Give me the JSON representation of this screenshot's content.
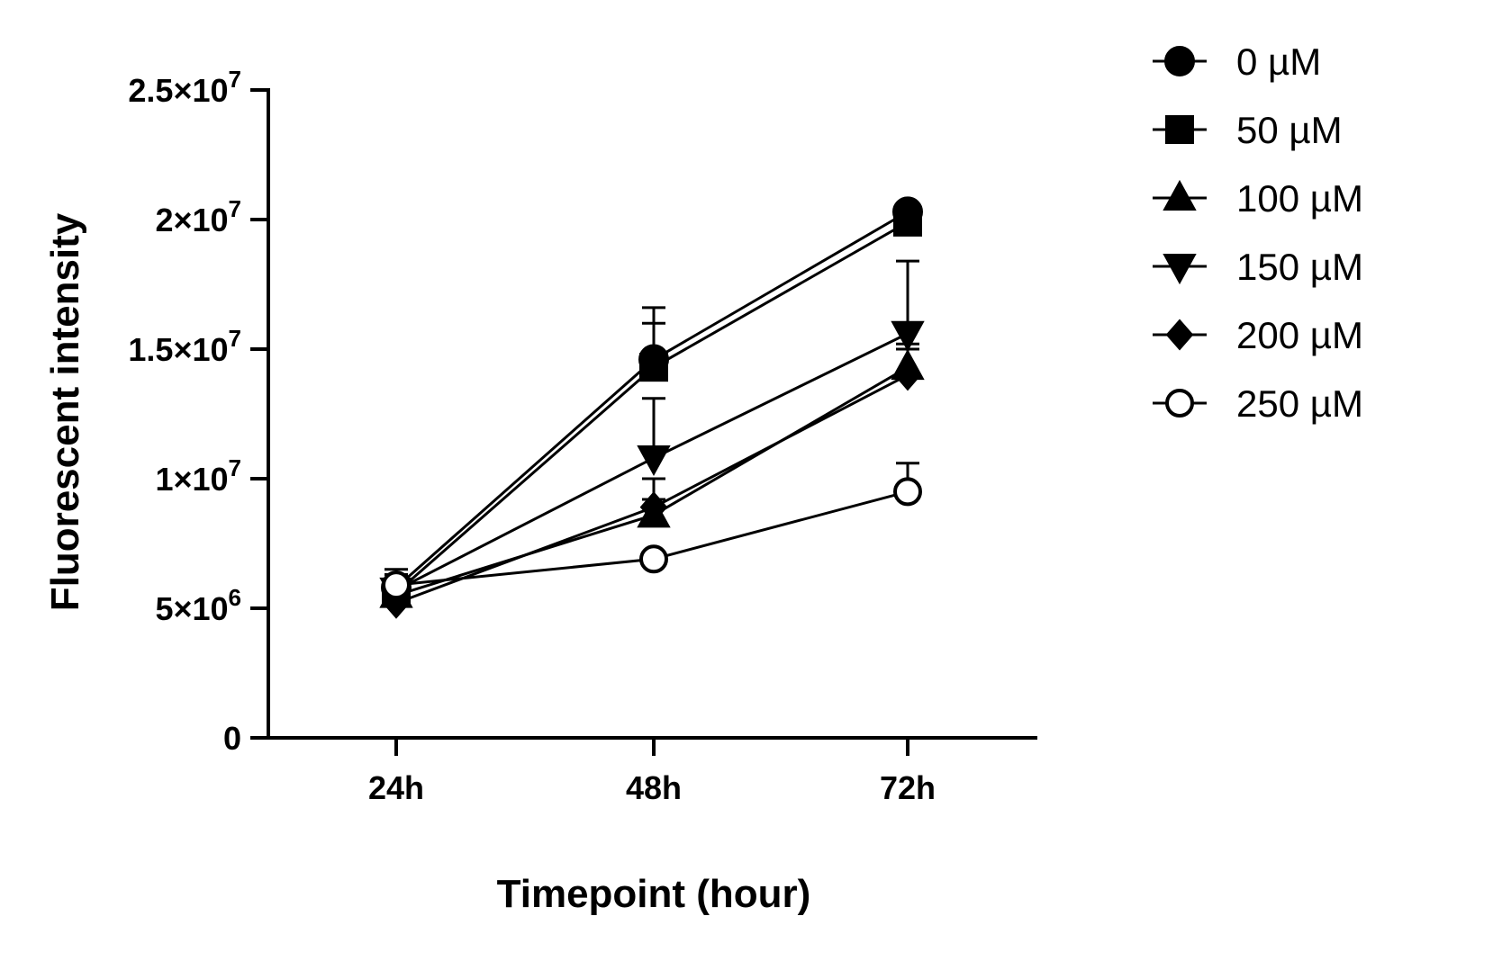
{
  "chart_data": {
    "type": "line",
    "xlabel": "Timepoint (hour)",
    "ylabel": "Fluorescent intensity",
    "categories": [
      "24h",
      "48h",
      "72h"
    ],
    "y_ticks": [
      {
        "value": 0,
        "mantissa": "0",
        "exp": ""
      },
      {
        "value": 5000000,
        "mantissa": "5×10",
        "exp": "6"
      },
      {
        "value": 10000000,
        "mantissa": "1×10",
        "exp": "7"
      },
      {
        "value": 15000000,
        "mantissa": "1.5×10",
        "exp": "7"
      },
      {
        "value": 20000000,
        "mantissa": "2×10",
        "exp": "7"
      },
      {
        "value": 25000000,
        "mantissa": "2.5×10",
        "exp": "7"
      }
    ],
    "ylim": [
      0,
      25000000
    ],
    "grid": false,
    "legend_position": "top-right",
    "series": [
      {
        "name": "0 µM",
        "marker": "circle",
        "values": [
          5800000,
          14600000,
          20300000
        ],
        "error_upper": [
          6500000,
          16600000,
          null
        ]
      },
      {
        "name": "50 µM",
        "marker": "square",
        "values": [
          5600000,
          14300000,
          19900000
        ],
        "error_upper": [
          6300000,
          16000000,
          null
        ]
      },
      {
        "name": "100 µM",
        "marker": "triangle-up",
        "values": [
          5500000,
          8600000,
          14300000
        ],
        "error_upper": [
          6000000,
          9200000,
          15000000
        ]
      },
      {
        "name": "150 µM",
        "marker": "triangle-down",
        "values": [
          5700000,
          10800000,
          15600000
        ],
        "error_upper": [
          6300000,
          13100000,
          18400000
        ]
      },
      {
        "name": "200 µM",
        "marker": "diamond",
        "values": [
          5200000,
          8900000,
          14000000
        ],
        "error_upper": [
          5800000,
          10000000,
          15200000
        ]
      },
      {
        "name": "250 µM",
        "marker": "circle-open",
        "values": [
          5900000,
          6900000,
          9500000
        ],
        "error_upper": [
          6300000,
          null,
          10600000
        ]
      }
    ]
  }
}
